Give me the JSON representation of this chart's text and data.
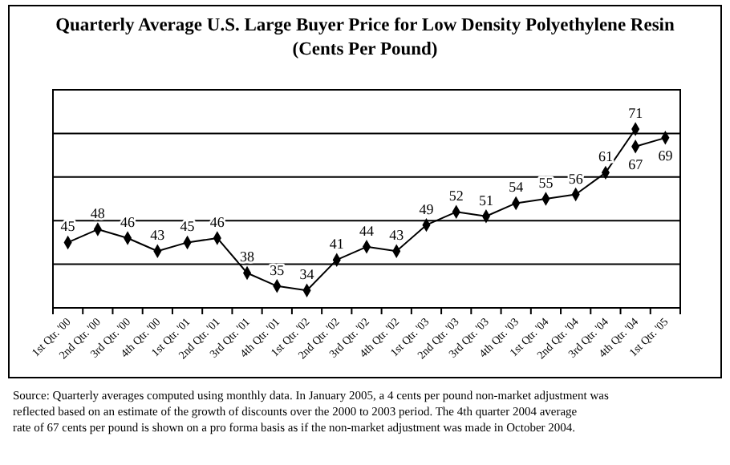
{
  "chart_data": {
    "type": "line",
    "title": "Quarterly Average U.S. Large Buyer Price for Low Density Polyethylene Resin (Cents Per Pound)",
    "categories": [
      "1st Qtr. '00",
      "2nd Qtr. '00",
      "3rd Qtr. '00",
      "4th Qtr. '00",
      "1st Qtr. '01",
      "2nd Qtr. '01",
      "3rd Qtr. '01",
      "4th Qtr. '01",
      "1st Qtr. '02",
      "2nd Qtr. '02",
      "3rd Qtr. '02",
      "4th Qtr. '02",
      "1st Qtr. '03",
      "2nd Qtr. '03",
      "3rd Qtr. '03",
      "4th Qtr. '03",
      "1st Qtr. '04",
      "2nd Qtr. '04",
      "3rd Qtr. '04",
      "4th Qtr. '04",
      "1st Qtr. '05"
    ],
    "series": [
      {
        "color": "#000000",
        "values": [
          45,
          48,
          46,
          43,
          45,
          46,
          38,
          35,
          34,
          41,
          44,
          43,
          49,
          52,
          51,
          54,
          55,
          56,
          61,
          71,
          null
        ]
      },
      {
        "color": "#000000",
        "values": [
          null,
          null,
          null,
          null,
          null,
          null,
          null,
          null,
          null,
          null,
          null,
          null,
          null,
          null,
          null,
          null,
          null,
          null,
          null,
          67,
          69
        ]
      }
    ],
    "ylim": [
      30,
      80
    ],
    "yticks": [
      {
        "value": 30,
        "label": null
      },
      {
        "value": 40,
        "label": null
      },
      {
        "value": 50,
        "label": null
      },
      {
        "value": 60,
        "label": null
      },
      {
        "value": 70,
        "label": null
      },
      {
        "value": 80,
        "label": null
      }
    ],
    "tick_labels": "x",
    "grid": "y",
    "data_labels": true,
    "marker": "diamond",
    "line_style": "solid",
    "annotations": [
      "Source: Quarterly averages computed using monthly data. In January 2005, a 4 cents per pound non-market adjustment was reflected based on an estimate of the growth of discounts over the 2000 to 2003 period. The 4th quarter 2004 average rate of 67 cents per pound is shown on a pro forma basis as if the non-market adjustment was made in October 2004."
    ]
  }
}
